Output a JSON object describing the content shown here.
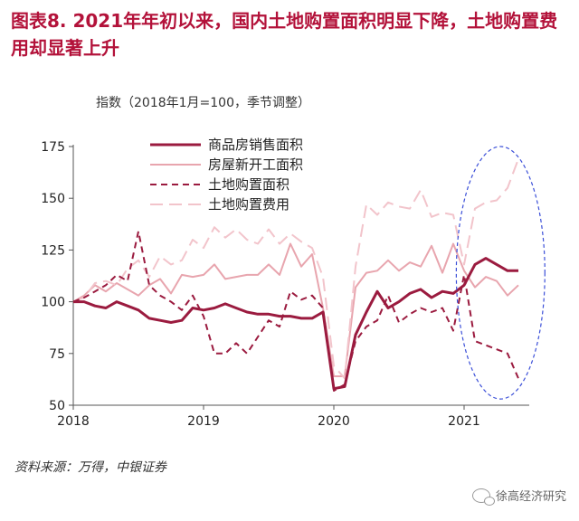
{
  "header": {
    "title": "图表8. 2021年年初以来，国内土地购置面积明显下降，土地购置费用却显著上升"
  },
  "footer": {
    "source": "资料来源：万得，中银证券",
    "watermark": "徐高经济研究"
  },
  "chart_data": {
    "type": "line",
    "ylabel": "指数（2018年1月=100，季节调整）",
    "xlabel": "",
    "ylim": [
      50,
      175
    ],
    "yticks": [
      50,
      75,
      100,
      125,
      150,
      175
    ],
    "xlim": [
      2018.0,
      2021.5
    ],
    "xticks": [
      2018,
      2019,
      2020,
      2021
    ],
    "grid": false,
    "legend_position": "top-center",
    "colors": {
      "commodity_sales": "#9b1b3f",
      "new_construction": "#e8a5ae",
      "land_area": "#9b1b3f",
      "land_cost": "#f2c4cb",
      "highlight": "#3b4fd8"
    },
    "highlight_region": {
      "x_center": 2021.28,
      "y_center": 114,
      "x_radius": 0.34,
      "y_radius": 61
    },
    "series": [
      {
        "name": "商品房销售面积",
        "style": "solid",
        "width": 3,
        "color_key": "commodity_sales",
        "values": [
          100,
          100,
          98,
          97,
          100,
          98,
          96,
          92,
          91,
          90,
          91,
          97,
          96,
          97,
          99,
          97,
          95,
          94,
          94,
          93,
          93,
          92,
          92,
          95,
          58,
          59,
          84,
          95,
          105,
          97,
          100,
          104,
          106,
          102,
          105,
          104,
          108,
          118,
          121,
          118,
          115,
          115
        ]
      },
      {
        "name": "房屋新开工面积",
        "style": "solid",
        "width": 2,
        "color_key": "new_construction",
        "values": [
          100,
          103,
          108,
          105,
          109,
          106,
          103,
          108,
          111,
          104,
          113,
          112,
          113,
          118,
          111,
          112,
          113,
          113,
          118,
          113,
          128,
          117,
          123,
          97,
          64,
          64,
          107,
          114,
          115,
          120,
          115,
          119,
          117,
          127,
          114,
          128,
          115,
          107,
          112,
          110,
          103,
          108
        ]
      },
      {
        "name": "土地购置面积",
        "style": "dashed",
        "width": 2,
        "color_key": "land_area",
        "values": [
          100,
          102,
          105,
          108,
          113,
          110,
          134,
          108,
          103,
          100,
          96,
          103,
          93,
          75,
          75,
          80,
          75,
          83,
          91,
          88,
          105,
          101,
          103,
          97,
          57,
          60,
          81,
          88,
          91,
          103,
          90,
          94,
          97,
          95,
          97,
          86,
          113,
          81,
          79,
          77,
          75,
          63
        ]
      },
      {
        "name": "土地购置费用",
        "style": "dashed",
        "width": 2,
        "color_key": "land_cost",
        "values": [
          100,
          102,
          109,
          110,
          108,
          116,
          120,
          112,
          122,
          118,
          120,
          130,
          126,
          136,
          131,
          135,
          130,
          128,
          135,
          128,
          133,
          129,
          126,
          112,
          69,
          63,
          117,
          147,
          142,
          148,
          146,
          145,
          154,
          141,
          143,
          142,
          118,
          145,
          148,
          149,
          155,
          169
        ]
      }
    ]
  }
}
